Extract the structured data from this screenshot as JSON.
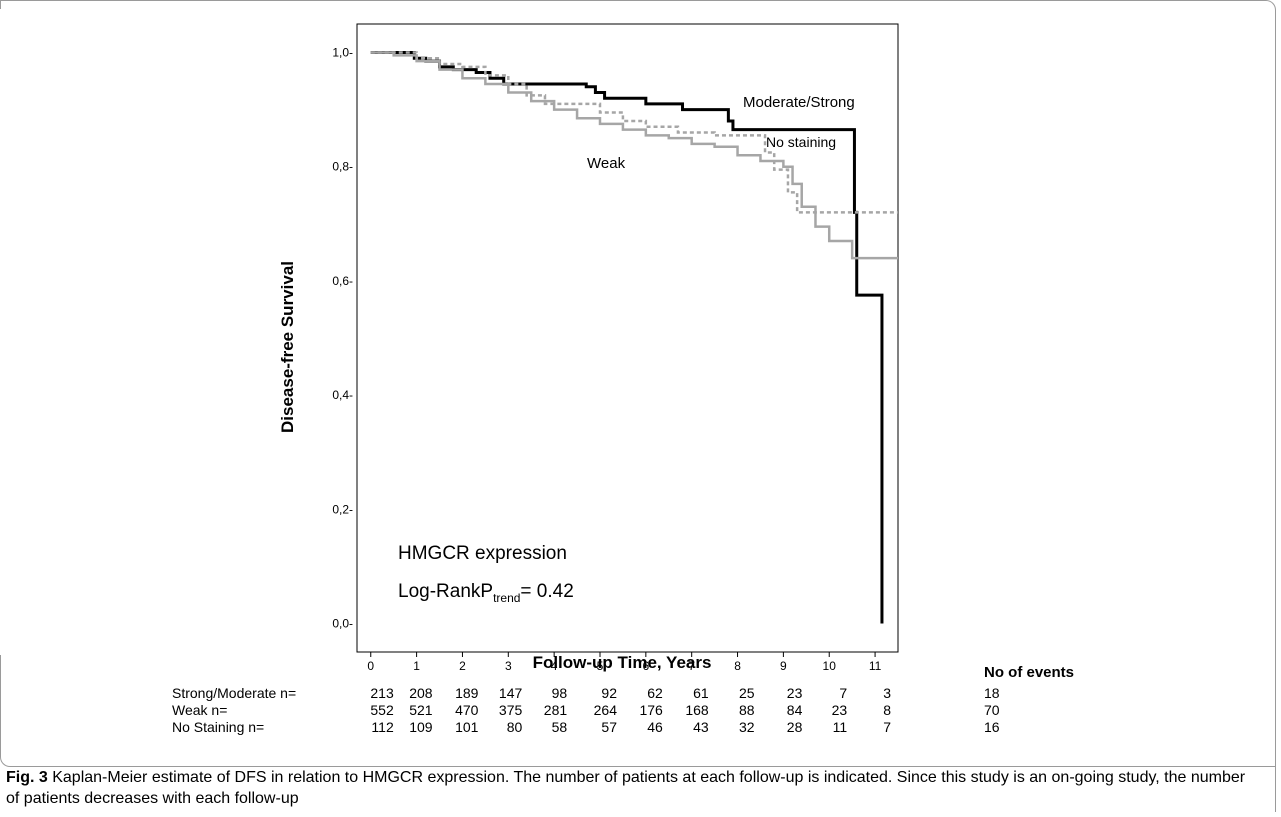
{
  "chart_data": {
    "type": "line",
    "step": true,
    "title": "",
    "xlabel": "Follow-up Time, Years",
    "ylabel": "Disease-free Survival",
    "xlim": [
      -0.3,
      11.5
    ],
    "ylim": [
      -0.05,
      1.05
    ],
    "x_ticks": [
      0,
      1,
      2,
      3,
      4,
      5,
      6,
      7,
      8,
      9,
      10,
      11
    ],
    "x_tick_labels": [
      "0",
      "1",
      "2",
      "3",
      "4",
      "5",
      "6",
      "7",
      "8",
      "9",
      "10",
      "11"
    ],
    "y_ticks": [
      0,
      0.2,
      0.4,
      0.6,
      0.8,
      1.0
    ],
    "y_tick_labels": [
      "0,0-",
      "0,2-",
      "0,4-",
      "0,6-",
      "0,8-",
      "1,0-"
    ],
    "grid": false,
    "series": [
      {
        "name": "Moderate/Strong",
        "color": "#000000",
        "style": "solid",
        "points": [
          [
            0,
            1.0
          ],
          [
            0.9,
            1.0
          ],
          [
            0.95,
            0.99
          ],
          [
            1.2,
            0.985
          ],
          [
            1.5,
            0.975
          ],
          [
            1.8,
            0.97
          ],
          [
            2.3,
            0.965
          ],
          [
            2.6,
            0.955
          ],
          [
            2.9,
            0.945
          ],
          [
            4.7,
            0.94
          ],
          [
            4.9,
            0.93
          ],
          [
            5.1,
            0.92
          ],
          [
            6.0,
            0.91
          ],
          [
            6.8,
            0.9
          ],
          [
            7.8,
            0.88
          ],
          [
            7.9,
            0.865
          ],
          [
            10.5,
            0.865
          ],
          [
            10.55,
            0.72
          ],
          [
            10.6,
            0.575
          ],
          [
            11.1,
            0.575
          ],
          [
            11.15,
            0.0
          ]
        ]
      },
      {
        "name": "Weak",
        "color": "#a6a6a6",
        "style": "solid",
        "points": [
          [
            0,
            1.0
          ],
          [
            0.5,
            0.995
          ],
          [
            1.0,
            0.985
          ],
          [
            1.5,
            0.97
          ],
          [
            2.0,
            0.955
          ],
          [
            2.5,
            0.945
          ],
          [
            3.0,
            0.93
          ],
          [
            3.5,
            0.915
          ],
          [
            4.0,
            0.9
          ],
          [
            4.5,
            0.885
          ],
          [
            5.0,
            0.875
          ],
          [
            5.5,
            0.865
          ],
          [
            6.0,
            0.855
          ],
          [
            6.5,
            0.85
          ],
          [
            7.0,
            0.84
          ],
          [
            7.5,
            0.835
          ],
          [
            8.0,
            0.82
          ],
          [
            8.5,
            0.81
          ],
          [
            9.0,
            0.8
          ],
          [
            9.2,
            0.77
          ],
          [
            9.4,
            0.73
          ],
          [
            9.7,
            0.695
          ],
          [
            10.0,
            0.67
          ],
          [
            10.5,
            0.64
          ],
          [
            11.5,
            0.64
          ]
        ]
      },
      {
        "name": "No staining",
        "color": "#a6a6a6",
        "style": "dashed",
        "points": [
          [
            0,
            1.0
          ],
          [
            0.8,
            1.0
          ],
          [
            1.0,
            0.99
          ],
          [
            1.5,
            0.98
          ],
          [
            2.0,
            0.975
          ],
          [
            2.5,
            0.96
          ],
          [
            3.0,
            0.945
          ],
          [
            3.4,
            0.925
          ],
          [
            3.8,
            0.91
          ],
          [
            4.6,
            0.91
          ],
          [
            5.0,
            0.895
          ],
          [
            5.5,
            0.88
          ],
          [
            6.0,
            0.87
          ],
          [
            6.7,
            0.86
          ],
          [
            7.5,
            0.855
          ],
          [
            8.5,
            0.855
          ],
          [
            8.6,
            0.825
          ],
          [
            8.8,
            0.795
          ],
          [
            9.1,
            0.755
          ],
          [
            9.3,
            0.72
          ],
          [
            11.5,
            0.72
          ]
        ]
      }
    ],
    "annotations": {
      "label_moderate": "Moderate/Strong",
      "label_nostain": "No staining",
      "label_weak": "Weak",
      "expression_label": "HMGCR expression",
      "logrank_prefix": "Log-RankP",
      "logrank_sub": "trend",
      "logrank_suffix": "= 0.42"
    },
    "risk_table": {
      "events_header": "No of events",
      "rows": [
        {
          "label": "Strong/Moderate n=",
          "counts": [
            "213",
            "208",
            "189",
            "147",
            "98",
            "92",
            "62",
            "61",
            "25",
            "23",
            "7",
            "3"
          ],
          "events": "18"
        },
        {
          "label": "Weak n=",
          "counts": [
            "552",
            "521",
            "470",
            "375",
            "281",
            "264",
            "176",
            "168",
            "88",
            "84",
            "23",
            "8"
          ],
          "events": "70"
        },
        {
          "label": "No Staining n=",
          "counts": [
            "112",
            "109",
            "101",
            "80",
            "58",
            "57",
            "46",
            "43",
            "32",
            "28",
            "11",
            "7"
          ],
          "events": "16"
        }
      ]
    }
  },
  "caption": {
    "fig_label": "Fig. 3",
    "text": " Kaplan-Meier estimate of DFS in relation to HMGCR expression. The number of patients at each follow-up is indicated. Since this study is an on-going study, the number of patients decreases with each follow-up"
  }
}
